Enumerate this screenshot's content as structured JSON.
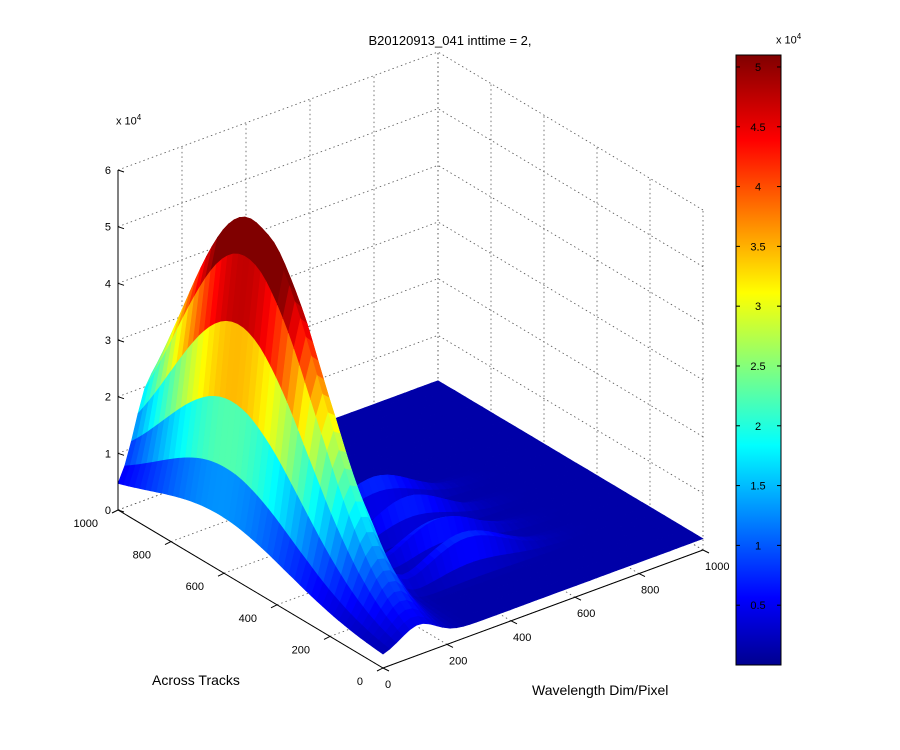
{
  "chart_data": {
    "type": "surface",
    "title": "B20120913_041 inttime = 2,",
    "xlabel": "Across Tracks",
    "ylabel": "Wavelength Dim/Pixel",
    "zlabel": "",
    "x_ticks": [
      "0",
      "200",
      "400",
      "600",
      "800",
      "1000"
    ],
    "y_ticks": [
      "0",
      "200",
      "400",
      "600",
      "800",
      "1000"
    ],
    "z_ticks": [
      "0",
      "1",
      "2",
      "3",
      "4",
      "5",
      "6"
    ],
    "z_multiplier": "x 10",
    "z_multiplier_exp": "4",
    "xlim": [
      0,
      1000
    ],
    "ylim": [
      0,
      1000
    ],
    "zlim": [
      0,
      60000
    ],
    "colormap": "jet",
    "grid": true,
    "colorbar": {
      "ticks": [
        "0.5",
        "1",
        "1.5",
        "2",
        "2.5",
        "3",
        "3.5",
        "4",
        "4.5",
        "5"
      ],
      "multiplier": "x 10",
      "multiplier_exp": "4",
      "range": [
        0,
        51000
      ]
    },
    "peak_max": 58000,
    "secondary_peak": 30000,
    "background_level": 2000
  }
}
